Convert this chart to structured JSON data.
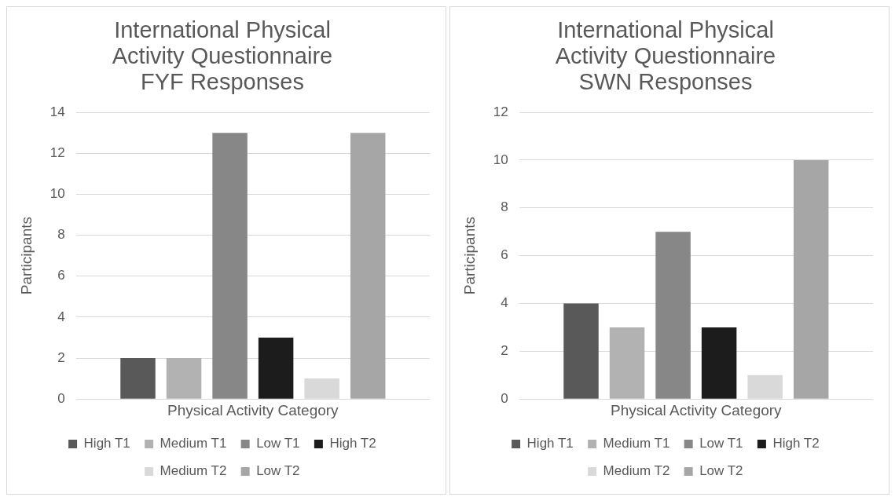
{
  "chart_data": [
    {
      "type": "bar",
      "title": "International Physical Activity Questionnaire FYF Responses",
      "xlabel": "Physical Activity Category",
      "ylabel": "Participants",
      "categories": [
        null
      ],
      "ylim": [
        0,
        14
      ],
      "yticks": [
        0,
        2,
        4,
        6,
        8,
        10,
        12,
        14
      ],
      "grid": "y",
      "legend": "bottom",
      "series": [
        {
          "name": "High T1",
          "color": "#595959",
          "values": [
            2
          ]
        },
        {
          "name": "Medium T1",
          "color": "#b2b2b2",
          "values": [
            2
          ]
        },
        {
          "name": "Low T1",
          "color": "#878787",
          "values": [
            13
          ]
        },
        {
          "name": "High T2",
          "color": "#1c1c1c",
          "values": [
            3
          ]
        },
        {
          "name": "Medium T2",
          "color": "#d9d9d9",
          "values": [
            1
          ]
        },
        {
          "name": "Low T2",
          "color": "#a6a6a6",
          "values": [
            13
          ]
        }
      ]
    },
    {
      "type": "bar",
      "title": "International Physical Activity Questionnaire SWN Responses",
      "xlabel": "Physical Activity Category",
      "ylabel": "Participants",
      "categories": [
        null
      ],
      "ylim": [
        0,
        12
      ],
      "yticks": [
        0,
        2,
        4,
        6,
        8,
        10,
        12
      ],
      "grid": "y",
      "legend": "bottom",
      "series": [
        {
          "name": "High T1",
          "color": "#595959",
          "values": [
            4
          ]
        },
        {
          "name": "Medium T1",
          "color": "#b2b2b2",
          "values": [
            3
          ]
        },
        {
          "name": "Low T1",
          "color": "#878787",
          "values": [
            7
          ]
        },
        {
          "name": "High T2",
          "color": "#1c1c1c",
          "values": [
            3
          ]
        },
        {
          "name": "Medium T2",
          "color": "#d9d9d9",
          "values": [
            1
          ]
        },
        {
          "name": "Low T2",
          "color": "#a6a6a6",
          "values": [
            10
          ]
        }
      ]
    }
  ]
}
